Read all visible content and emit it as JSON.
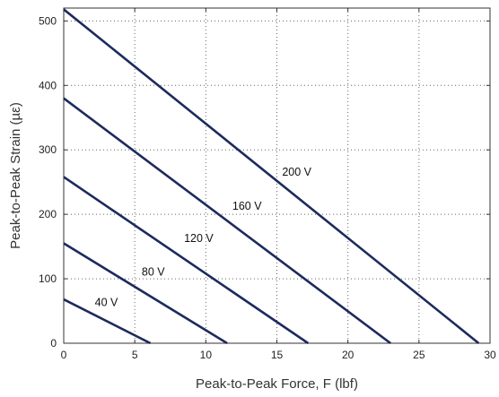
{
  "chart_data": {
    "type": "line",
    "title": "",
    "xlabel": "Peak-to-Peak Force, F (lbf)",
    "ylabel": "Peak-to-Peak Strain (µε)",
    "xlim": [
      0,
      30
    ],
    "ylim": [
      0,
      520
    ],
    "xticks": [
      0,
      5,
      10,
      15,
      20,
      25,
      30
    ],
    "yticks": [
      0,
      100,
      200,
      300,
      400,
      500
    ],
    "grid": true,
    "grid_style": "dotted",
    "line_color": "#1c2a5e",
    "series": [
      {
        "name": "40 V",
        "points": [
          [
            0,
            68
          ],
          [
            6.1,
            0
          ]
        ],
        "label_at": [
          3.0,
          58
        ]
      },
      {
        "name": "80 V",
        "points": [
          [
            0,
            155
          ],
          [
            11.5,
            0
          ]
        ],
        "label_at": [
          6.3,
          105
        ]
      },
      {
        "name": "120 V",
        "points": [
          [
            0,
            258
          ],
          [
            17.2,
            0
          ]
        ],
        "label_at": [
          9.5,
          157
        ]
      },
      {
        "name": "160 V",
        "points": [
          [
            0,
            380
          ],
          [
            23.0,
            0
          ]
        ],
        "label_at": [
          12.9,
          207
        ]
      },
      {
        "name": "200 V",
        "points": [
          [
            0,
            518
          ],
          [
            29.2,
            0
          ]
        ],
        "label_at": [
          16.4,
          260
        ]
      }
    ]
  }
}
